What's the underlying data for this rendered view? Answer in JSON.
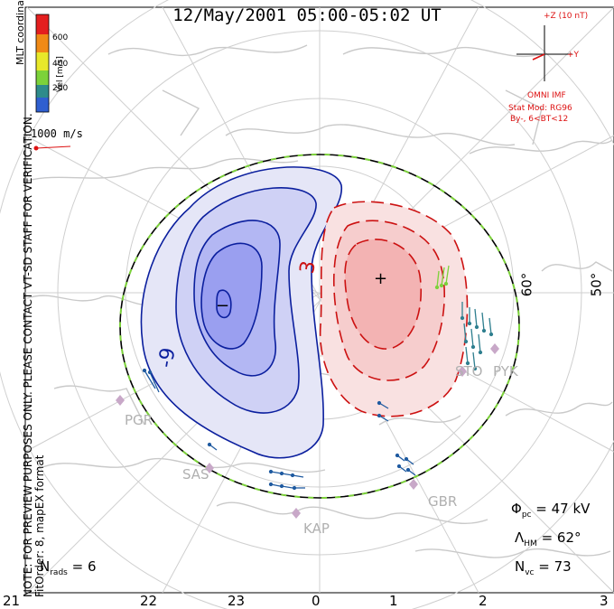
{
  "title": "12/May/2001 05:00-05:02 UT",
  "note_line1": "NOTE: FOR PREVIEW PURPOSES ONLY. PLEASE CONTACT VT-SD STAFF FOR VERIFICATION.",
  "note_line2": "FitOrder: 8, mapEX format",
  "coords": "MLT coordinates",
  "colorbar": {
    "label": "Vel [m/s]",
    "ticks": [
      "600",
      "400",
      "200"
    ]
  },
  "velocity_scale": "1000 m/s",
  "imf": {
    "z_label": "+Z (10 nT)",
    "y_label": "+Y",
    "source": "OMNI IMF",
    "model": "Stat Mod: RG96",
    "model_params": "By-, 6<BT<12"
  },
  "stats": {
    "phi_pc": "47 kV",
    "lambda_hm": "62°",
    "n_vc": "73",
    "n_rads": "6"
  },
  "mlt_labels": [
    "21",
    "22",
    "23",
    "0",
    "1",
    "2",
    "3"
  ],
  "lat_labels": [
    "60°",
    "50°"
  ],
  "contour_labels": {
    "neg": "-9",
    "pos": "3"
  },
  "symbols": {
    "min": "−",
    "max": "+"
  },
  "stations": [
    "PGR",
    "SAS",
    "KAP",
    "GBR",
    "STO",
    "PYK"
  ],
  "colors": {
    "negative_fill": "#8a8ff0",
    "positive_fill": "#f3b3b3",
    "negative_line": "#0b1f9e",
    "positive_line": "#cc1111",
    "land": "#d0d0d0",
    "hmb": "#7cd23a",
    "imf_text": "#dd1111"
  }
}
